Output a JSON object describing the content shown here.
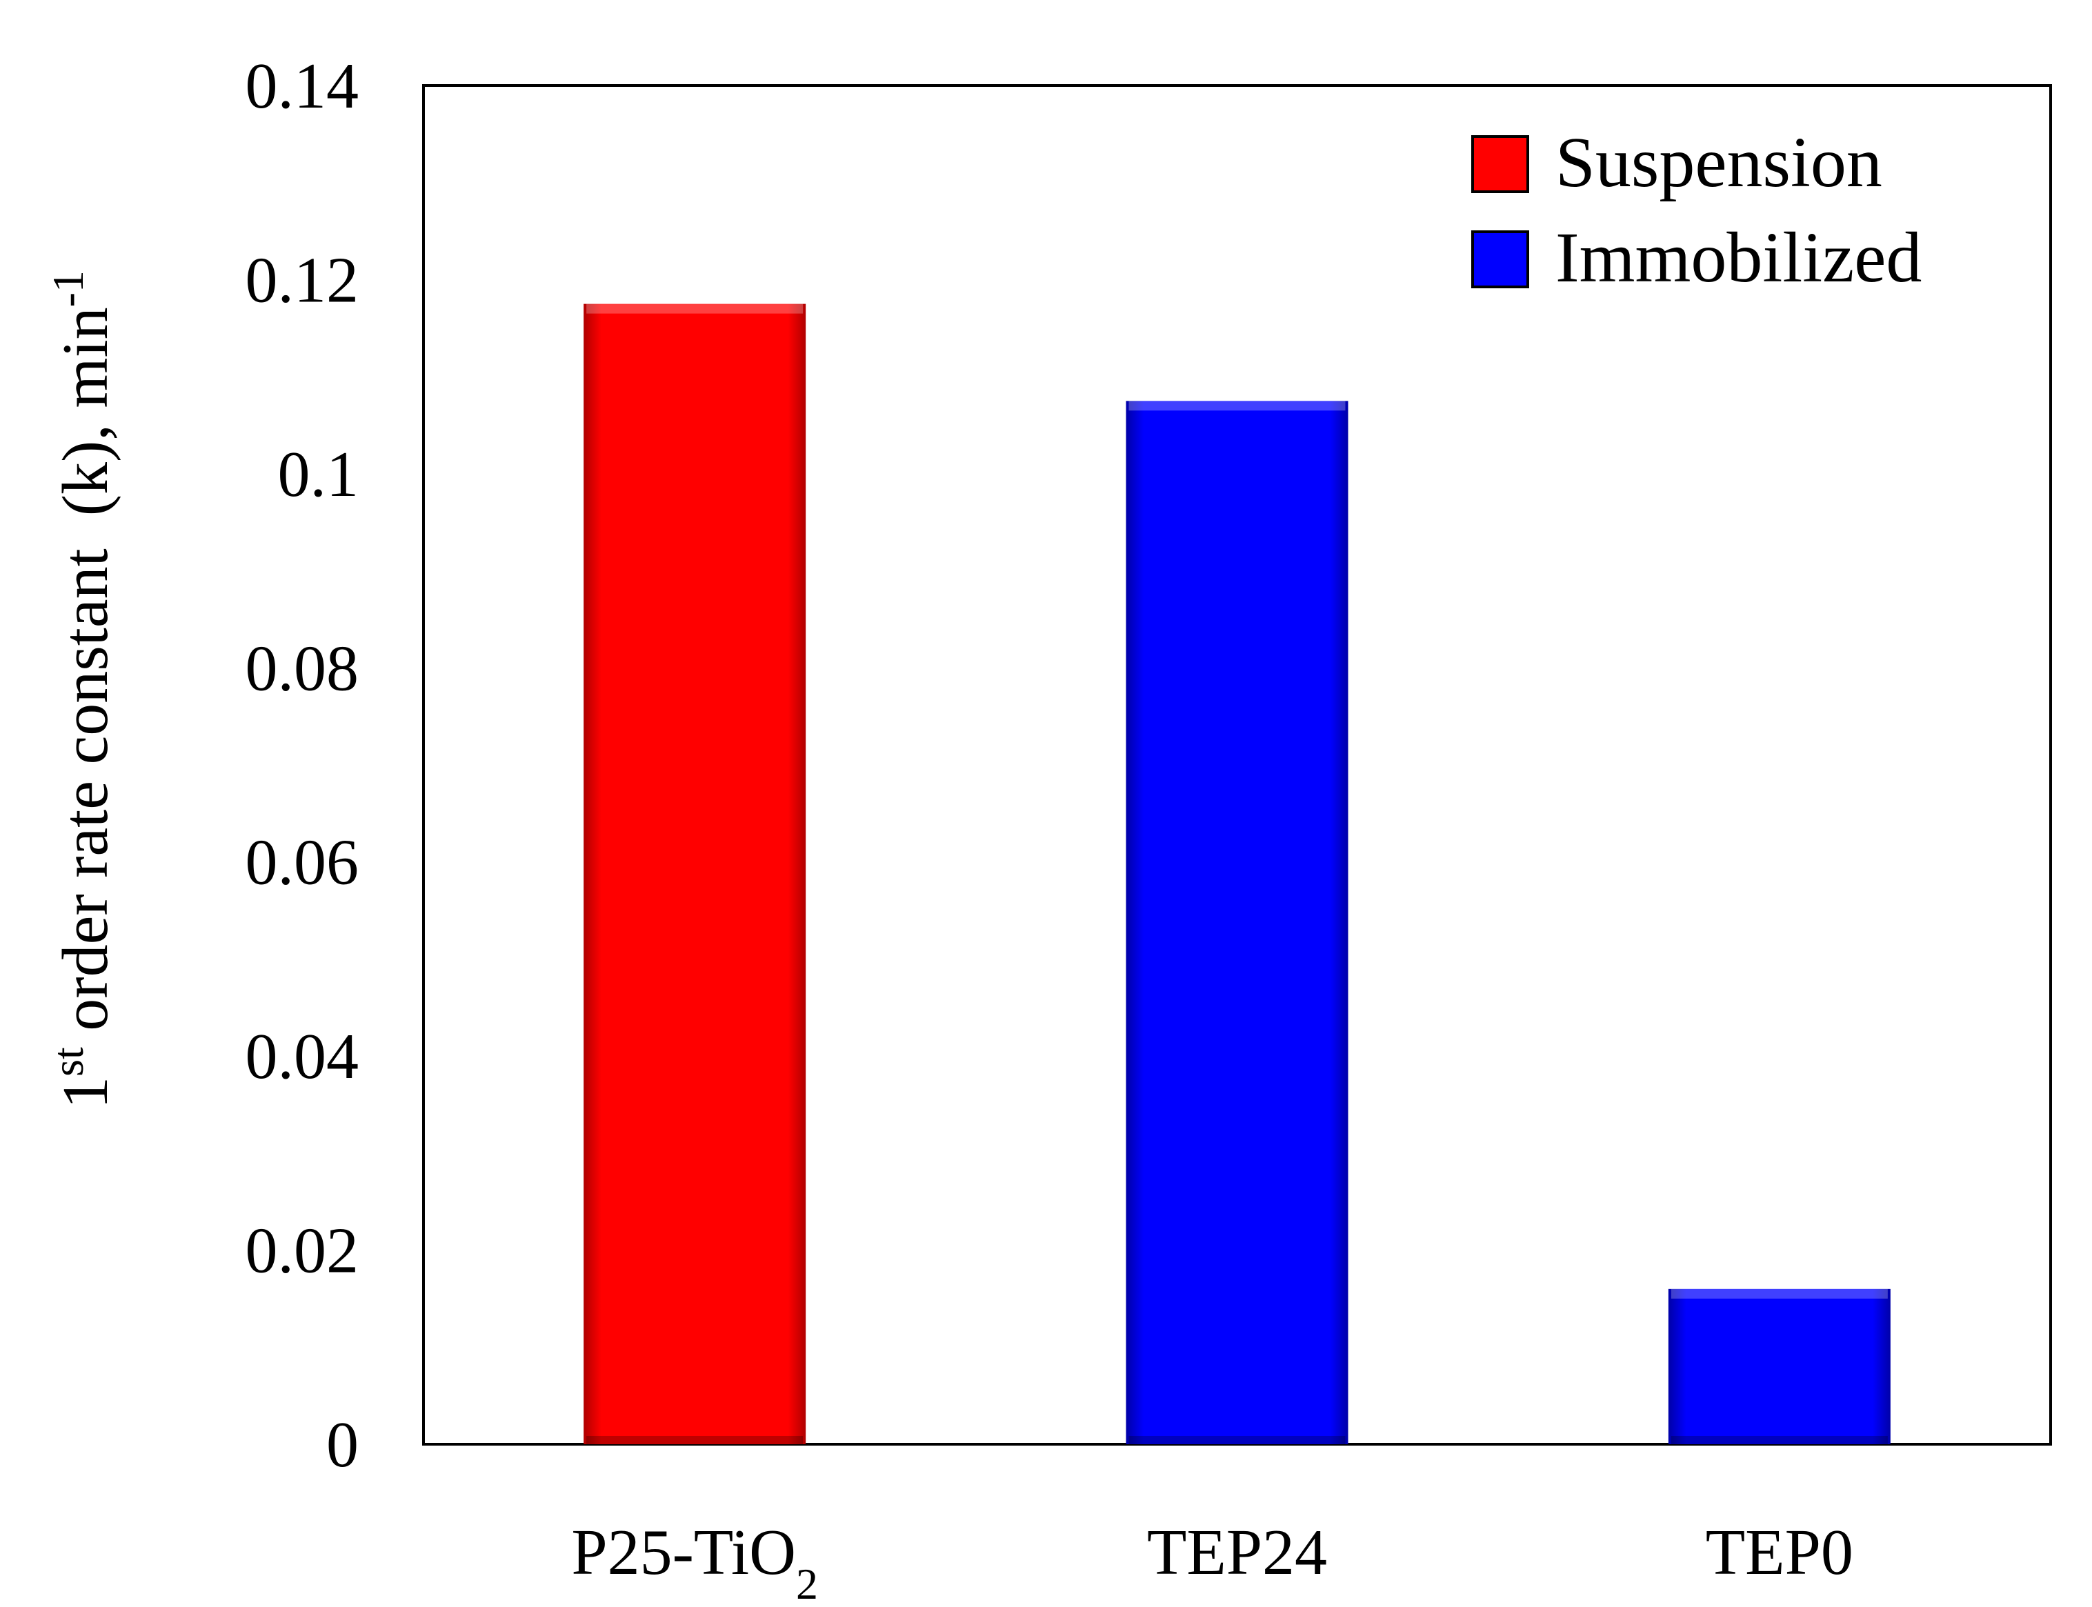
{
  "chart_data": {
    "type": "bar",
    "title": "",
    "xlabel": "",
    "ylabel": {
      "pre": "1",
      "sup": "st",
      "main": " order rate constant  (k), min",
      "sup2": "-1"
    },
    "ylim": [
      0,
      0.14
    ],
    "yticks": [
      {
        "value": 0,
        "label": "0"
      },
      {
        "value": 0.02,
        "label": "0.02"
      },
      {
        "value": 0.04,
        "label": "0.04"
      },
      {
        "value": 0.06,
        "label": "0.06"
      },
      {
        "value": 0.08,
        "label": "0.08"
      },
      {
        "value": 0.1,
        "label": "0.1"
      },
      {
        "value": 0.12,
        "label": "0.12"
      },
      {
        "value": 0.14,
        "label": "0.14"
      }
    ],
    "categories": [
      {
        "label": "P25-TiO",
        "sub": "2"
      },
      {
        "label": "TEP24",
        "sub": ""
      },
      {
        "label": "TEP0",
        "sub": ""
      }
    ],
    "values": [
      0.1175,
      0.1075,
      0.016
    ],
    "bar_series": [
      "Suspension",
      "Immobilized",
      "Immobilized"
    ],
    "legend": {
      "placement": "top-right",
      "entries": [
        {
          "name": "Suspension",
          "color": "#ff0000",
          "dark": "#b00000"
        },
        {
          "name": "Immobilized",
          "color": "#0000ff",
          "dark": "#0000a8"
        }
      ]
    },
    "grid": false
  }
}
